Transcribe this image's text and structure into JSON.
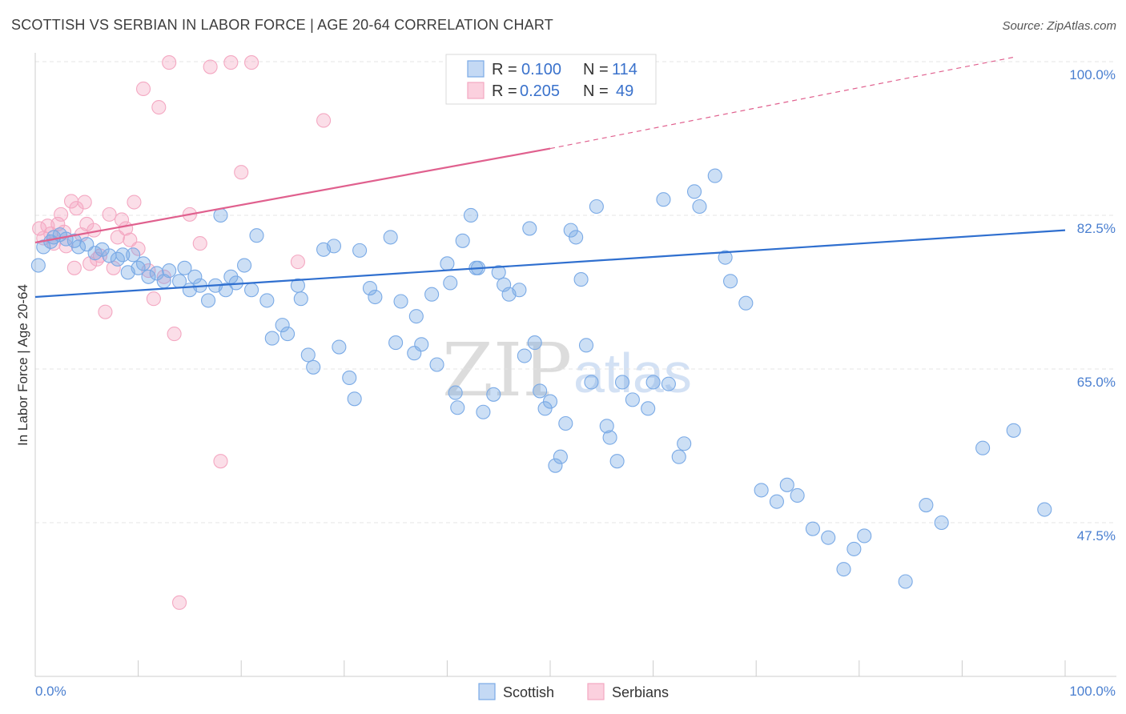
{
  "chart_data": {
    "type": "scatter",
    "title": "SCOTTISH VS SERBIAN IN LABOR FORCE | AGE 20-64 CORRELATION CHART",
    "source": "Source: ZipAtlas.com",
    "xlabel": "",
    "ylabel": "In Labor Force | Age 20-64",
    "xlim": [
      0,
      100
    ],
    "ylim": [
      30,
      101
    ],
    "x_tick_labels": [
      "0.0%",
      "100.0%"
    ],
    "y_ticks": [
      {
        "value": 100.0,
        "label": "100.0%"
      },
      {
        "value": 82.5,
        "label": "82.5%"
      },
      {
        "value": 65.0,
        "label": "65.0%"
      },
      {
        "value": 47.5,
        "label": "47.5%"
      }
    ],
    "watermark": {
      "part1": "ZIP",
      "part2": "atlas"
    },
    "stats": [
      {
        "r_label": "R =",
        "r_value": "0.100",
        "n_label": "N =",
        "n_value": "114"
      },
      {
        "r_label": "R =",
        "r_value": "0.205",
        "n_label": "N =",
        "n_value": "49"
      }
    ],
    "series": [
      {
        "name": "Scottish",
        "color": "#7aaae6",
        "line_color": "#2f6fcf",
        "trend": {
          "x0": 0,
          "y0": 73.2,
          "x1": 100,
          "y1": 80.8
        },
        "points": [
          [
            0.3,
            76.8
          ],
          [
            0.8,
            78.9
          ],
          [
            1.5,
            79.5
          ],
          [
            1.8,
            80.0
          ],
          [
            2.4,
            80.3
          ],
          [
            3.0,
            79.8
          ],
          [
            3.8,
            79.6
          ],
          [
            4.2,
            78.9
          ],
          [
            5.0,
            79.2
          ],
          [
            5.8,
            78.2
          ],
          [
            6.5,
            78.6
          ],
          [
            7.2,
            77.9
          ],
          [
            8.0,
            77.5
          ],
          [
            8.5,
            78.0
          ],
          [
            9.0,
            76.0
          ],
          [
            9.5,
            78.0
          ],
          [
            10.0,
            76.5
          ],
          [
            10.5,
            77.0
          ],
          [
            11.0,
            75.5
          ],
          [
            11.8,
            75.9
          ],
          [
            12.5,
            75.0
          ],
          [
            13.0,
            76.2
          ],
          [
            14.0,
            75.0
          ],
          [
            14.5,
            76.5
          ],
          [
            15.0,
            74.0
          ],
          [
            15.5,
            75.5
          ],
          [
            16.0,
            74.5
          ],
          [
            16.8,
            72.8
          ],
          [
            17.5,
            74.5
          ],
          [
            18.0,
            82.5
          ],
          [
            18.5,
            74.0
          ],
          [
            19.0,
            75.5
          ],
          [
            19.5,
            74.8
          ],
          [
            20.3,
            76.8
          ],
          [
            21.0,
            74.0
          ],
          [
            21.5,
            80.2
          ],
          [
            22.5,
            72.8
          ],
          [
            23.0,
            68.5
          ],
          [
            24.0,
            70.0
          ],
          [
            24.5,
            69.0
          ],
          [
            25.5,
            74.5
          ],
          [
            25.8,
            73.0
          ],
          [
            26.5,
            66.6
          ],
          [
            27.0,
            65.2
          ],
          [
            28.0,
            78.6
          ],
          [
            29.0,
            79.0
          ],
          [
            29.5,
            67.5
          ],
          [
            30.5,
            64.0
          ],
          [
            31.0,
            61.6
          ],
          [
            31.5,
            78.5
          ],
          [
            32.5,
            74.2
          ],
          [
            33.0,
            73.2
          ],
          [
            34.5,
            80.0
          ],
          [
            35.0,
            68.0
          ],
          [
            35.5,
            72.7
          ],
          [
            36.8,
            66.8
          ],
          [
            37.0,
            71.0
          ],
          [
            37.5,
            67.8
          ],
          [
            38.5,
            73.5
          ],
          [
            39.0,
            65.5
          ],
          [
            40.0,
            77.0
          ],
          [
            40.3,
            74.8
          ],
          [
            40.8,
            62.3
          ],
          [
            41.0,
            60.6
          ],
          [
            41.5,
            79.6
          ],
          [
            42.3,
            82.5
          ],
          [
            42.8,
            76.5
          ],
          [
            43.0,
            76.5
          ],
          [
            43.5,
            60.1
          ],
          [
            44.5,
            62.1
          ],
          [
            45.0,
            76.0
          ],
          [
            45.5,
            74.6
          ],
          [
            46.0,
            73.5
          ],
          [
            47.0,
            74.0
          ],
          [
            47.5,
            66.5
          ],
          [
            48.0,
            81.0
          ],
          [
            48.5,
            68.0
          ],
          [
            49.0,
            62.5
          ],
          [
            49.5,
            60.5
          ],
          [
            50.0,
            61.3
          ],
          [
            50.5,
            54.0
          ],
          [
            51.0,
            55.0
          ],
          [
            51.5,
            58.8
          ],
          [
            52.0,
            80.8
          ],
          [
            52.5,
            80.0
          ],
          [
            53.0,
            75.2
          ],
          [
            53.5,
            67.7
          ],
          [
            54.0,
            63.5
          ],
          [
            54.5,
            83.5
          ],
          [
            55.5,
            58.5
          ],
          [
            55.8,
            57.2
          ],
          [
            56.5,
            54.5
          ],
          [
            57.0,
            63.5
          ],
          [
            58.0,
            61.5
          ],
          [
            59.5,
            60.5
          ],
          [
            60.0,
            63.5
          ],
          [
            61.0,
            84.3
          ],
          [
            61.5,
            63.3
          ],
          [
            62.5,
            55.0
          ],
          [
            63.0,
            56.5
          ],
          [
            64.0,
            85.2
          ],
          [
            64.5,
            83.5
          ],
          [
            66.0,
            87.0
          ],
          [
            67.0,
            77.7
          ],
          [
            67.5,
            75.0
          ],
          [
            69.0,
            72.5
          ],
          [
            70.5,
            51.2
          ],
          [
            72.0,
            49.9
          ],
          [
            73.0,
            51.8
          ],
          [
            74.0,
            50.6
          ],
          [
            75.5,
            46.8
          ],
          [
            77.0,
            45.8
          ],
          [
            78.5,
            42.2
          ],
          [
            79.5,
            44.5
          ],
          [
            80.5,
            46.0
          ],
          [
            84.5,
            40.8
          ],
          [
            86.5,
            49.5
          ],
          [
            88.0,
            47.5
          ],
          [
            92.0,
            56.0
          ],
          [
            95.0,
            58.0
          ],
          [
            98.0,
            49.0
          ]
        ]
      },
      {
        "name": "Serbians",
        "color": "#f4a8c2",
        "line_color": "#e0608e",
        "trend": {
          "x0": 0,
          "y0": 79.4,
          "x1": 50.0,
          "y1": 90.1
        },
        "trend_ext": {
          "x0": 50.0,
          "y0": 90.1,
          "x1": 95.0,
          "y1": 100.5
        },
        "points": [
          [
            0.4,
            81.0
          ],
          [
            0.8,
            79.9
          ],
          [
            1.2,
            81.3
          ],
          [
            1.5,
            80.4
          ],
          [
            1.8,
            79.3
          ],
          [
            2.2,
            81.5
          ],
          [
            2.5,
            82.6
          ],
          [
            2.8,
            80.6
          ],
          [
            3.0,
            79.0
          ],
          [
            3.5,
            84.1
          ],
          [
            3.8,
            76.5
          ],
          [
            4.0,
            83.3
          ],
          [
            4.5,
            80.3
          ],
          [
            4.8,
            84.0
          ],
          [
            5.0,
            81.5
          ],
          [
            5.3,
            77.0
          ],
          [
            5.7,
            80.8
          ],
          [
            6.0,
            77.5
          ],
          [
            6.3,
            77.9
          ],
          [
            6.8,
            71.5
          ],
          [
            7.2,
            82.6
          ],
          [
            7.6,
            76.5
          ],
          [
            8.0,
            80.0
          ],
          [
            8.4,
            82.0
          ],
          [
            8.8,
            81.0
          ],
          [
            9.2,
            79.7
          ],
          [
            9.6,
            84.0
          ],
          [
            10.0,
            78.7
          ],
          [
            10.5,
            96.9
          ],
          [
            11.0,
            76.2
          ],
          [
            11.5,
            73.0
          ],
          [
            12.0,
            94.8
          ],
          [
            12.5,
            75.5
          ],
          [
            13.0,
            99.9
          ],
          [
            13.5,
            69.0
          ],
          [
            14.0,
            38.4
          ],
          [
            15.0,
            82.6
          ],
          [
            16.0,
            79.3
          ],
          [
            17.0,
            99.4
          ],
          [
            18.0,
            54.5
          ],
          [
            19.0,
            99.9
          ],
          [
            20.0,
            87.4
          ],
          [
            21.0,
            99.9
          ],
          [
            25.5,
            77.2
          ],
          [
            28.0,
            93.3
          ]
        ]
      }
    ]
  },
  "legend": {
    "items": [
      "Scottish",
      "Serbians"
    ]
  }
}
